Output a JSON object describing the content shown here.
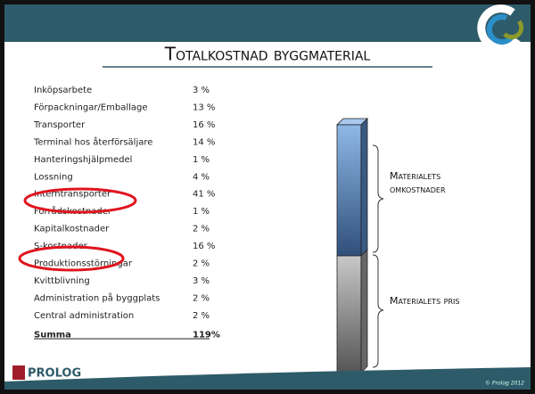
{
  "title": "Totalkostnad byggmaterial",
  "table": {
    "rows": [
      [
        "Inköpsarbete",
        "3 %"
      ],
      [
        "Förpackningar/Emballage",
        "13 %"
      ],
      [
        "Transporter",
        "16 %"
      ],
      [
        "Terminal hos återförsäljare",
        "14 %"
      ],
      [
        "Hanteringshjälpmedel",
        "1 %"
      ],
      [
        "Lossning",
        "4 %"
      ],
      [
        "Interntransporter",
        "41 %"
      ],
      [
        "Förrådskostnader",
        "1 %"
      ],
      [
        "Kapitalkostnader",
        "2 %"
      ],
      [
        "S-kostnader",
        "16 %"
      ],
      [
        "Produktionsstörningar",
        "2 %"
      ],
      [
        "Kvittblivning",
        "3 %"
      ],
      [
        "Administration på byggplats",
        "2 %"
      ],
      [
        "Central administration",
        "2 %"
      ]
    ],
    "total": [
      "Summa",
      "119%"
    ]
  },
  "bar_labels": {
    "upper": [
      "Materialets",
      "omkostnader"
    ],
    "lower": "Materialets pris"
  },
  "logo": "PROLOG",
  "footer": "© Prolog 2012"
}
